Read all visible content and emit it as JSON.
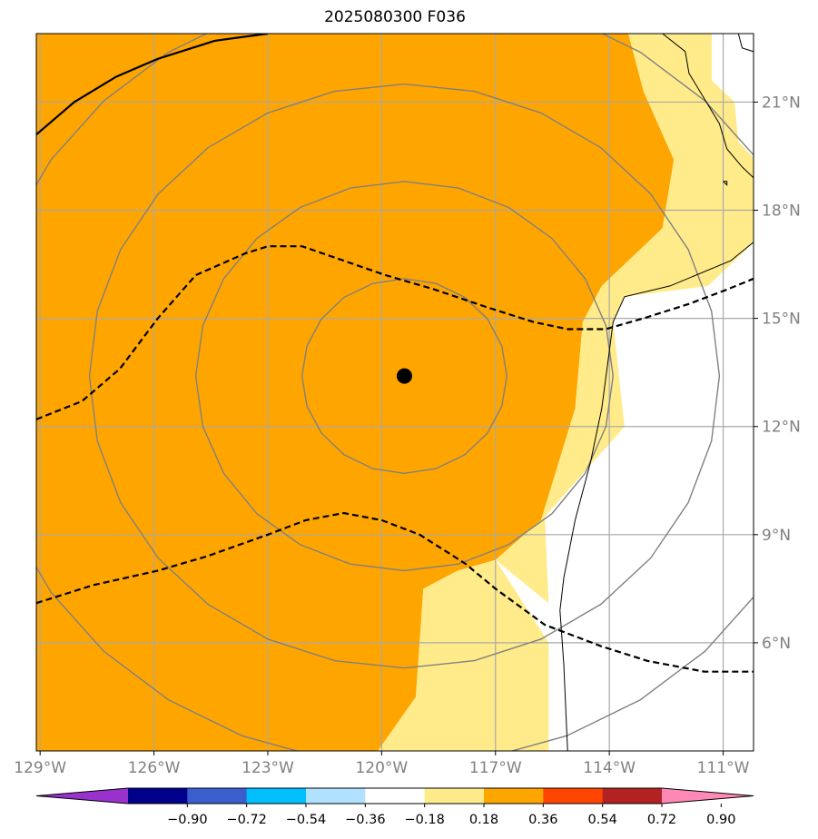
{
  "title": "2025080300 F036",
  "chart_data": {
    "type": "map",
    "title": "2025080300 F036",
    "lon_range": [
      -129.1,
      -110.2
    ],
    "lat_range": [
      3.0,
      22.9
    ],
    "grid": true,
    "x_ticks": [
      {
        "lon": -129,
        "label": "129°W"
      },
      {
        "lon": -126,
        "label": "126°W"
      },
      {
        "lon": -123,
        "label": "123°W"
      },
      {
        "lon": -120,
        "label": "120°W"
      },
      {
        "lon": -117,
        "label": "117°W"
      },
      {
        "lon": -114,
        "label": "114°W"
      },
      {
        "lon": -111,
        "label": "111°W"
      }
    ],
    "y_ticks": [
      {
        "lat": 6,
        "label": "6°N"
      },
      {
        "lat": 9,
        "label": "9°N"
      },
      {
        "lat": 12,
        "label": "12°N"
      },
      {
        "lat": 15,
        "label": "15°N"
      },
      {
        "lat": 18,
        "label": "18°N"
      },
      {
        "lat": 21,
        "label": "21°N"
      }
    ],
    "center_marker": {
      "lon": -119.4,
      "lat": 13.4
    },
    "range_rings": [
      {
        "lon_radius": 2.7,
        "lat_radius": 2.7
      },
      {
        "lon_radius": 5.5,
        "lat_radius": 5.4
      },
      {
        "lon_radius": 8.3,
        "lat_radius": 8.1
      },
      {
        "lon_radius": 11.2,
        "lat_radius": 10.8
      }
    ],
    "fill_regions": [
      {
        "level": "0.36 to 0.54",
        "color": "#ffa500",
        "points": [
          [
            -129.1,
            22.9
          ],
          [
            -113.5,
            22.9
          ],
          [
            -113.1,
            21.3
          ],
          [
            -112.3,
            19.4
          ],
          [
            -112.6,
            17.5
          ],
          [
            -114.2,
            15.9
          ],
          [
            -114.7,
            14.9
          ],
          [
            -114.9,
            12.5
          ],
          [
            -115.8,
            9.4
          ],
          [
            -117.0,
            8.3
          ],
          [
            -118.0,
            8.0
          ],
          [
            -118.9,
            7.5
          ],
          [
            -119.1,
            4.5
          ],
          [
            -120.1,
            3.0
          ],
          [
            -129.1,
            3.0
          ]
        ]
      },
      {
        "level": "0.18 to 0.36",
        "color": "#ffeb8a",
        "points": [
          [
            -113.5,
            22.9
          ],
          [
            -111.3,
            22.9
          ],
          [
            -111.3,
            21.6
          ],
          [
            -110.7,
            21.0
          ],
          [
            -110.6,
            19.9
          ],
          [
            -109.7,
            18.9
          ],
          [
            -110.1,
            17.2
          ],
          [
            -110.8,
            16.5
          ],
          [
            -111.4,
            15.9
          ],
          [
            -113.6,
            15.6
          ],
          [
            -113.9,
            14.9
          ],
          [
            -113.6,
            12.0
          ],
          [
            -115.7,
            9.5
          ],
          [
            -115.6,
            7.1
          ],
          [
            -117.0,
            8.3
          ],
          [
            -115.6,
            6.0
          ],
          [
            -115.6,
            3.0
          ],
          [
            -120.1,
            3.0
          ],
          [
            -119.1,
            4.5
          ],
          [
            -118.9,
            7.5
          ],
          [
            -118.0,
            8.0
          ],
          [
            -117.0,
            8.3
          ],
          [
            -115.8,
            9.4
          ],
          [
            -114.9,
            12.5
          ],
          [
            -114.7,
            14.9
          ],
          [
            -114.2,
            15.9
          ],
          [
            -112.6,
            17.5
          ],
          [
            -112.3,
            19.4
          ],
          [
            -113.1,
            21.3
          ]
        ]
      }
    ],
    "dashed_contours": [
      {
        "points": [
          [
            -129.1,
            12.2
          ],
          [
            -127.9,
            12.7
          ],
          [
            -126.9,
            13.6
          ],
          [
            -125.9,
            15.0
          ],
          [
            -124.9,
            16.2
          ],
          [
            -123.6,
            16.8
          ],
          [
            -123.0,
            17.0
          ],
          [
            -122.1,
            17.0
          ],
          [
            -121.0,
            16.6
          ],
          [
            -119.9,
            16.2
          ],
          [
            -118.6,
            15.8
          ],
          [
            -117.2,
            15.3
          ],
          [
            -116.0,
            14.9
          ],
          [
            -115.1,
            14.7
          ],
          [
            -114.1,
            14.7
          ],
          [
            -113.1,
            15.0
          ],
          [
            -111.9,
            15.4
          ],
          [
            -110.9,
            15.8
          ],
          [
            -110.2,
            16.1
          ]
        ]
      },
      {
        "points": [
          [
            -129.1,
            7.1
          ],
          [
            -127.6,
            7.6
          ],
          [
            -125.9,
            8.0
          ],
          [
            -124.6,
            8.4
          ],
          [
            -123.0,
            9.0
          ],
          [
            -122.0,
            9.4
          ],
          [
            -121.0,
            9.6
          ],
          [
            -120.0,
            9.4
          ],
          [
            -119.0,
            9.0
          ],
          [
            -117.8,
            8.2
          ],
          [
            -117.0,
            7.5
          ],
          [
            -115.7,
            6.5
          ],
          [
            -114.2,
            5.9
          ],
          [
            -113.0,
            5.5
          ],
          [
            -111.5,
            5.2
          ],
          [
            -110.2,
            5.2
          ]
        ]
      }
    ],
    "solid_contours": [
      {
        "points": [
          [
            -129.1,
            20.1
          ],
          [
            -128.1,
            21.0
          ],
          [
            -127.0,
            21.7
          ],
          [
            -125.9,
            22.2
          ],
          [
            -124.4,
            22.7
          ],
          [
            -123.0,
            22.9
          ]
        ]
      }
    ],
    "coastlines": [
      {
        "points": [
          [
            -112.6,
            22.9
          ],
          [
            -112.0,
            22.4
          ],
          [
            -111.9,
            21.8
          ],
          [
            -111.1,
            20.4
          ],
          [
            -110.9,
            19.7
          ],
          [
            -110.5,
            19.2
          ],
          [
            -110.1,
            18.8
          ],
          [
            -110.1,
            17.2
          ],
          [
            -110.8,
            16.6
          ],
          [
            -112.4,
            15.9
          ],
          [
            -113.6,
            15.6
          ],
          [
            -113.9,
            14.9
          ],
          [
            -114.0,
            14.1
          ],
          [
            -114.2,
            12.5
          ],
          [
            -114.5,
            11.0
          ],
          [
            -114.9,
            9.4
          ],
          [
            -115.2,
            7.8
          ],
          [
            -115.3,
            6.9
          ],
          [
            -115.2,
            5.4
          ],
          [
            -115.1,
            3.0
          ]
        ]
      },
      {
        "points": [
          [
            -110.6,
            22.9
          ],
          [
            -110.5,
            22.5
          ],
          [
            -110.2,
            22.4
          ],
          [
            -110.0,
            22.5
          ],
          [
            -109.9,
            22.9
          ]
        ]
      },
      {
        "points": [
          [
            -111.0,
            18.8
          ],
          [
            -110.9,
            18.7
          ],
          [
            -110.9,
            18.8
          ],
          [
            -111.0,
            18.8
          ]
        ]
      }
    ],
    "colorbar": {
      "colors": [
        "#9932cc",
        "#00008b",
        "#3a5fcd",
        "#00bfff",
        "#b0e2ff",
        "#ffffff",
        "#ffeb8a",
        "#ffa500",
        "#ff4500",
        "#b22222",
        "#ff89b6"
      ],
      "tick_labels": [
        "−0.90",
        "−0.72",
        "−0.54",
        "−0.36",
        "−0.18",
        "0.18",
        "0.36",
        "0.54",
        "0.72",
        "0.90"
      ]
    }
  }
}
